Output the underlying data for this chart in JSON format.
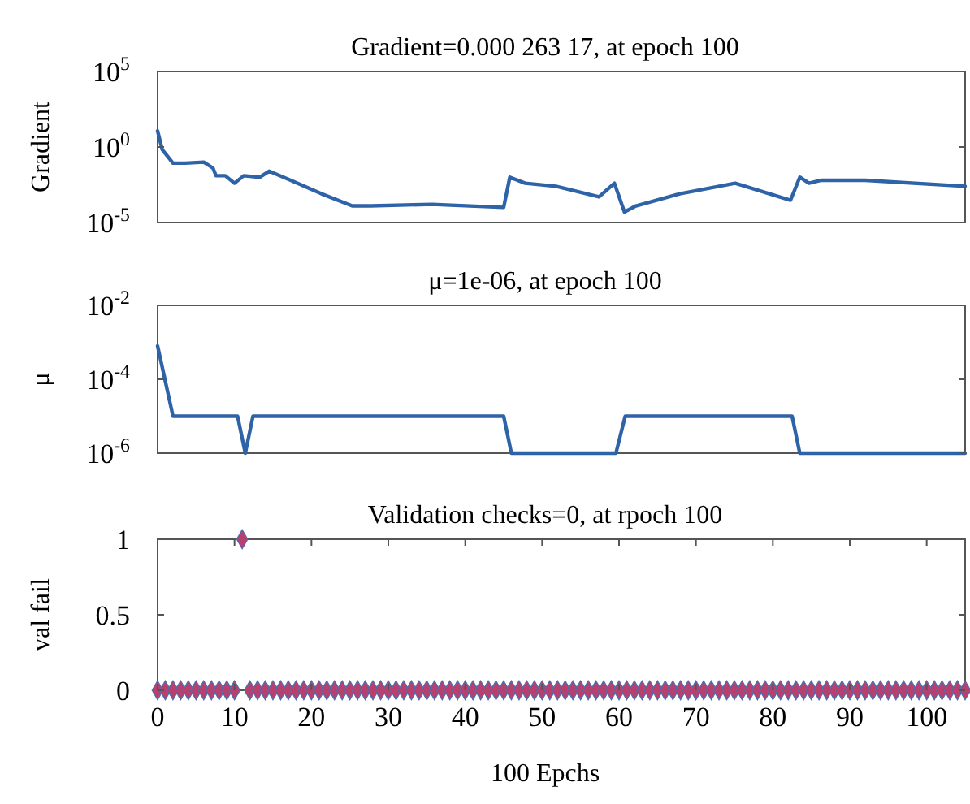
{
  "chart_data": [
    {
      "type": "line",
      "title": "Gradient=0.000 263 17, at epoch 100",
      "ylabel": "Gradient",
      "log": true,
      "tick_labels": "y",
      "xlim": [
        0,
        105
      ],
      "ylim": [
        1e-05,
        100000
      ],
      "yticks": [
        {
          "value": 1e-05,
          "label": "10$^{-5}$"
        },
        {
          "value": 1,
          "label": "10$^{0}$"
        },
        {
          "value": 100000,
          "label": "10$^{5}$"
        }
      ],
      "series": [
        {
          "color": "#2e63a8",
          "x": [
            0,
            0.6,
            2,
            3.6,
            6,
            7.2,
            7.6,
            8.8,
            10,
            11.2,
            13.3,
            14.5,
            17.3,
            21.3,
            25.3,
            27.7,
            35.7,
            45,
            45.8,
            47.8,
            51.8,
            57.4,
            59.4,
            60.7,
            62.2,
            67.9,
            75.1,
            82.3,
            83.5,
            84.7,
            86.3,
            92,
            105
          ],
          "values": [
            11.7,
            0.68,
            0.085,
            0.085,
            0.1,
            0.04,
            0.0126,
            0.0126,
            0.004,
            0.0126,
            0.01,
            0.025,
            0.0063,
            0.0008,
            0.000126,
            0.000126,
            0.00016,
            0.0001,
            0.01,
            0.004,
            0.0025,
            0.0005,
            0.004,
            5e-05,
            0.000126,
            0.0008,
            0.004,
            0.0003,
            0.01,
            0.004,
            0.0063,
            0.0063,
            0.0025
          ]
        }
      ]
    },
    {
      "type": "line",
      "title": "μ=1e-06, at epoch 100",
      "ylabel": "μ",
      "log": true,
      "tick_labels": "y",
      "xlim": [
        0,
        105
      ],
      "ylim": [
        1e-06,
        0.01
      ],
      "yticks": [
        {
          "value": 1e-06,
          "label": "10$^{-6}$"
        },
        {
          "value": 0.0001,
          "label": "10$^{-4}$"
        },
        {
          "value": 0.01,
          "label": "10$^{-2}$"
        }
      ],
      "series": [
        {
          "color": "#2e63a8",
          "x": [
            0,
            2,
            10.4,
            11.4,
            12.4,
            45,
            46,
            59.6,
            60.8,
            82.5,
            83.5,
            105
          ],
          "values": [
            0.0008,
            1e-05,
            1e-05,
            1e-06,
            1e-05,
            1e-05,
            1e-06,
            1e-06,
            1e-05,
            1e-05,
            1e-06,
            1e-06
          ]
        }
      ]
    },
    {
      "type": "scatter",
      "title": "Validation checks=0, at rpoch 100",
      "xlabel": "100 Epchs",
      "ylabel": "val fail",
      "marker": "diamond",
      "xlim": [
        0,
        105
      ],
      "ylim": [
        0,
        1
      ],
      "xticks": [
        0,
        10,
        20,
        30,
        40,
        50,
        60,
        70,
        80,
        90,
        100
      ],
      "yticks": [
        0,
        0.5,
        1
      ],
      "series": [
        {
          "color": "#b8406e",
          "x": [
            0,
            1,
            2,
            3,
            4,
            5,
            6,
            7,
            8,
            9,
            10,
            11,
            12,
            13,
            14,
            15,
            16,
            17,
            18,
            19,
            20,
            21,
            22,
            23,
            24,
            25,
            26,
            27,
            28,
            29,
            30,
            31,
            32,
            33,
            34,
            35,
            36,
            37,
            38,
            39,
            40,
            41,
            42,
            43,
            44,
            45,
            46,
            47,
            48,
            49,
            50,
            51,
            52,
            53,
            54,
            55,
            56,
            57,
            58,
            59,
            60,
            61,
            62,
            63,
            64,
            65,
            66,
            67,
            68,
            69,
            70,
            71,
            72,
            73,
            74,
            75,
            76,
            77,
            78,
            79,
            80,
            81,
            82,
            83,
            84,
            85,
            86,
            87,
            88,
            89,
            90,
            91,
            92,
            93,
            94,
            95,
            96,
            97,
            98,
            99,
            100,
            101,
            102,
            103,
            104,
            105
          ],
          "values": [
            0,
            0,
            0,
            0,
            0,
            0,
            0,
            0,
            0,
            0,
            0,
            1,
            0,
            0,
            0,
            0,
            0,
            0,
            0,
            0,
            0,
            0,
            0,
            0,
            0,
            0,
            0,
            0,
            0,
            0,
            0,
            0,
            0,
            0,
            0,
            0,
            0,
            0,
            0,
            0,
            0,
            0,
            0,
            0,
            0,
            0,
            0,
            0,
            0,
            0,
            0,
            0,
            0,
            0,
            0,
            0,
            0,
            0,
            0,
            0,
            0,
            0,
            0,
            0,
            0,
            0,
            0,
            0,
            0,
            0,
            0,
            0,
            0,
            0,
            0,
            0,
            0,
            0,
            0,
            0,
            0,
            0,
            0,
            0,
            0,
            0,
            0,
            0,
            0,
            0,
            0,
            0,
            0,
            0,
            0,
            0,
            0,
            0,
            0,
            0,
            0,
            0,
            0,
            0,
            0,
            0
          ]
        }
      ]
    }
  ]
}
